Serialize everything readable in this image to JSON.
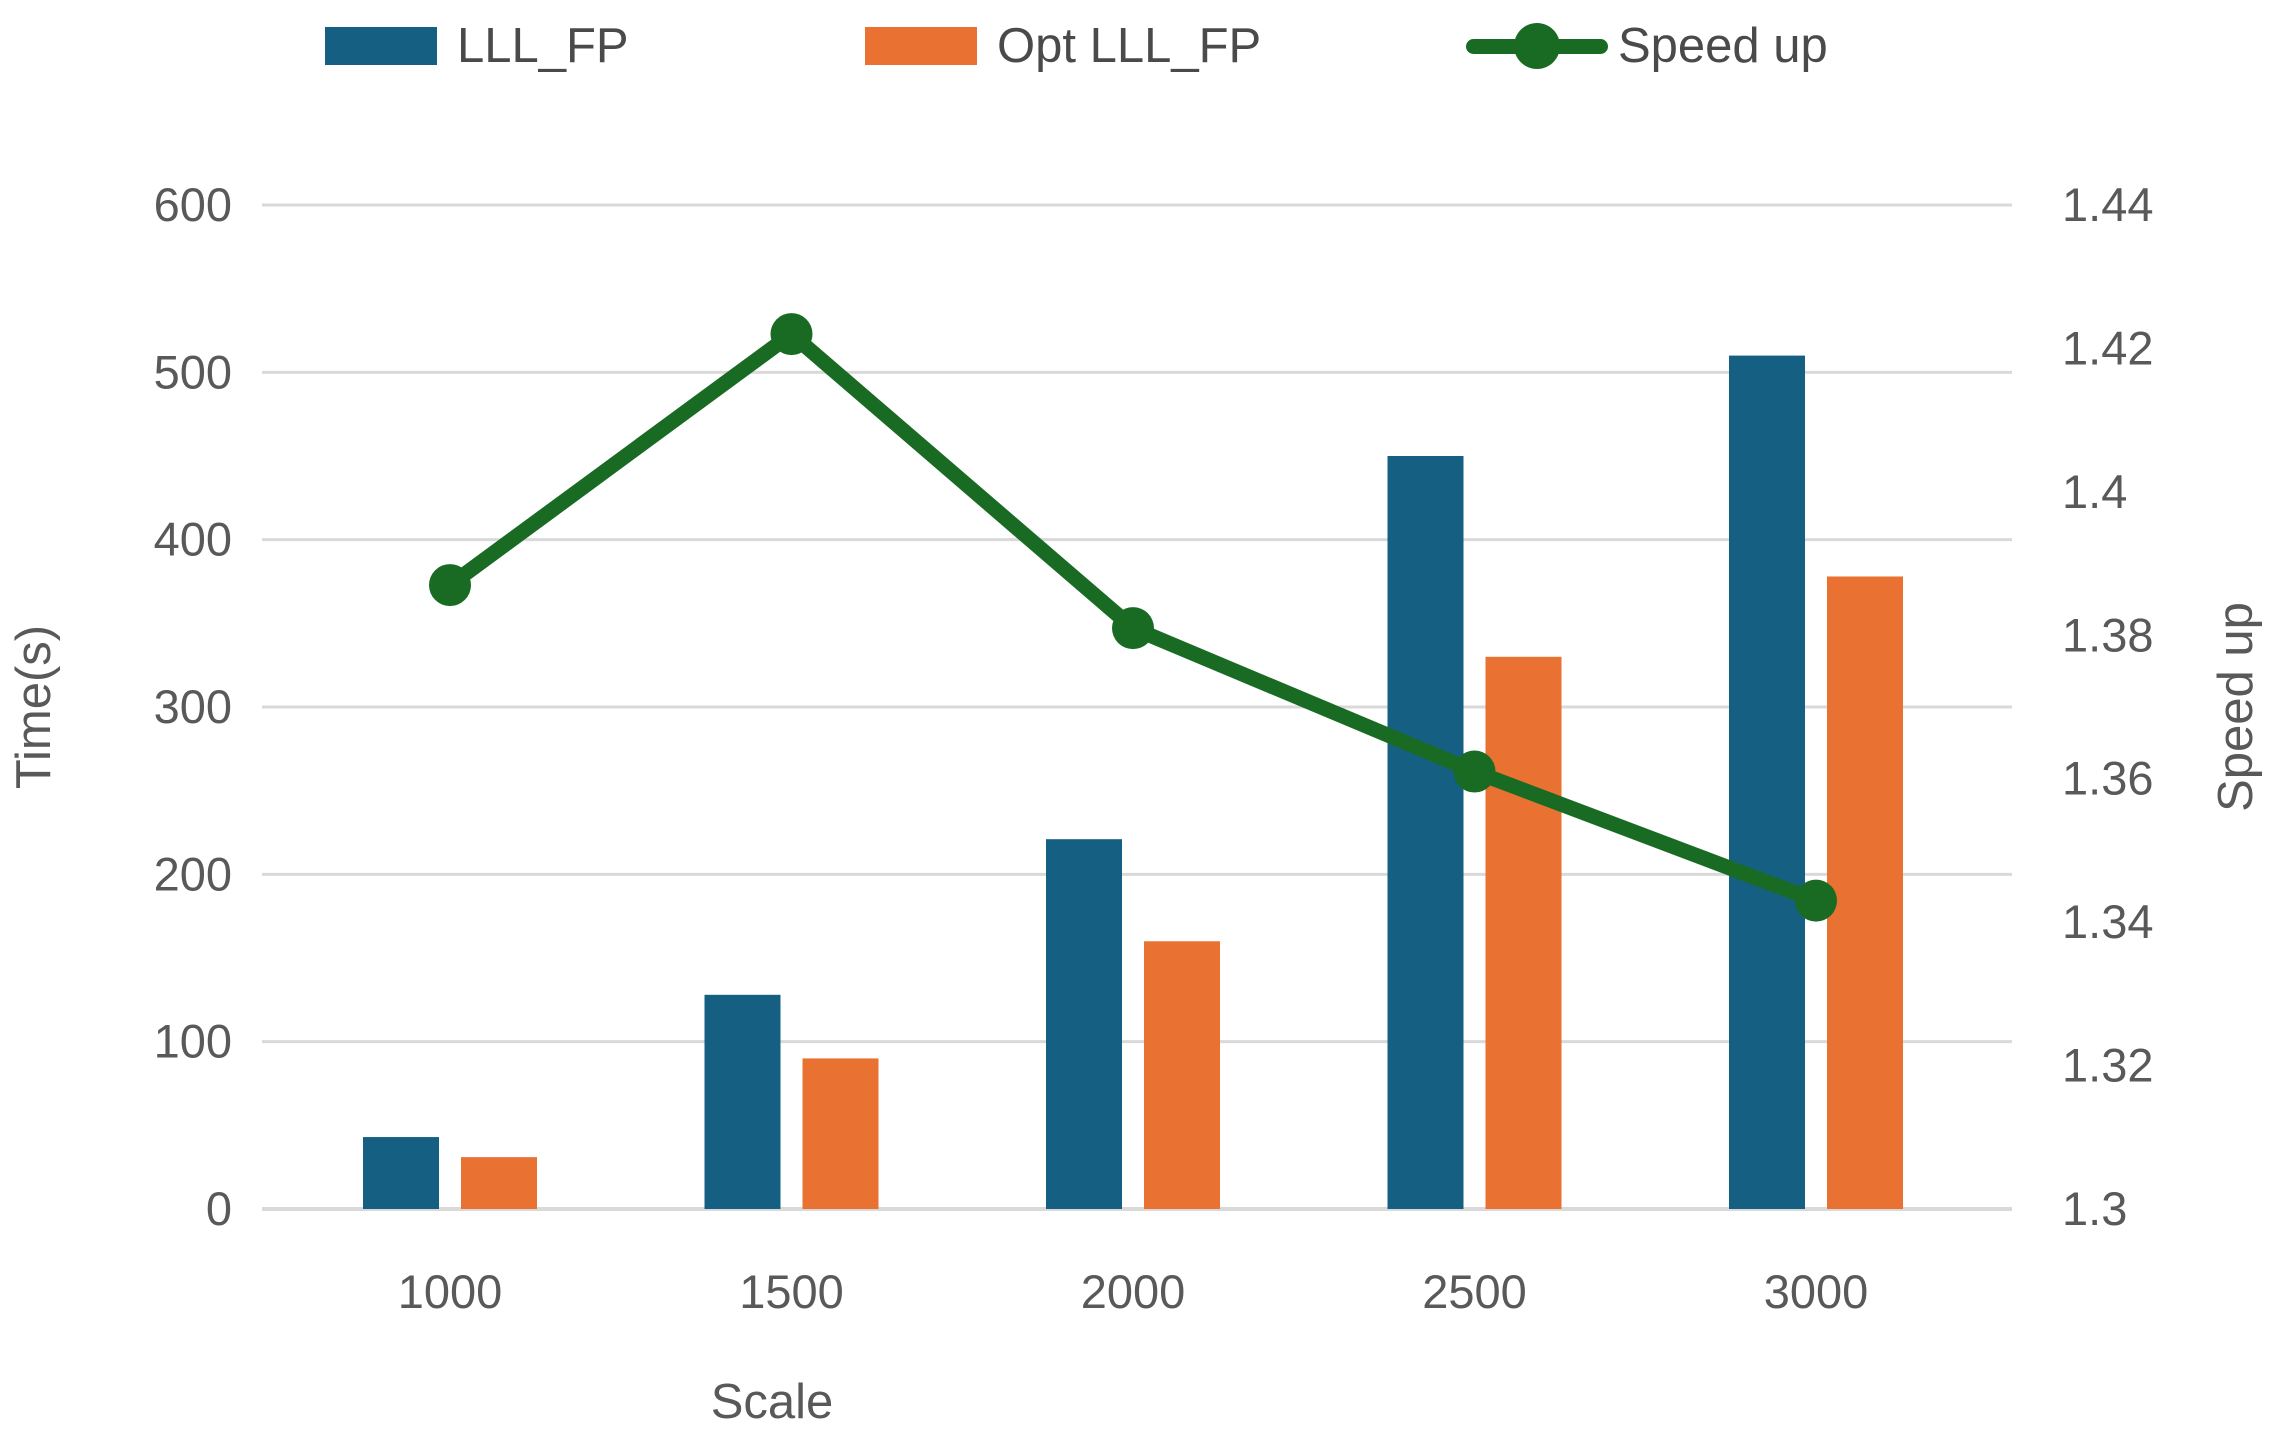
{
  "chart_data": {
    "type": "combo-bar-line",
    "categories": [
      "1000",
      "1500",
      "2000",
      "2500",
      "3000"
    ],
    "xlabel": "Scale",
    "y_left": {
      "label": "Time(s)",
      "min": 0,
      "max": 600,
      "step": 100
    },
    "y_right": {
      "label": "Speed up",
      "min": 1.3,
      "max": 1.44,
      "step": 0.02
    },
    "series": [
      {
        "name": "LLL_FP",
        "type": "bar",
        "axis": "left",
        "color": "#156082",
        "values": [
          43,
          128,
          221,
          450,
          510
        ]
      },
      {
        "name": "Opt LLL_FP",
        "type": "bar",
        "axis": "left",
        "color": "#E97132",
        "values": [
          31,
          90,
          160,
          330,
          378
        ]
      },
      {
        "name": "Speed up",
        "type": "line",
        "axis": "right",
        "color": "#196B24",
        "values": [
          1.387,
          1.422,
          1.381,
          1.361,
          1.343
        ]
      }
    ],
    "legend_position": "top",
    "grid": true,
    "colors": {
      "grid": "#D9D9D9",
      "axis_text": "#595959",
      "background": "#FFFFFF"
    }
  }
}
